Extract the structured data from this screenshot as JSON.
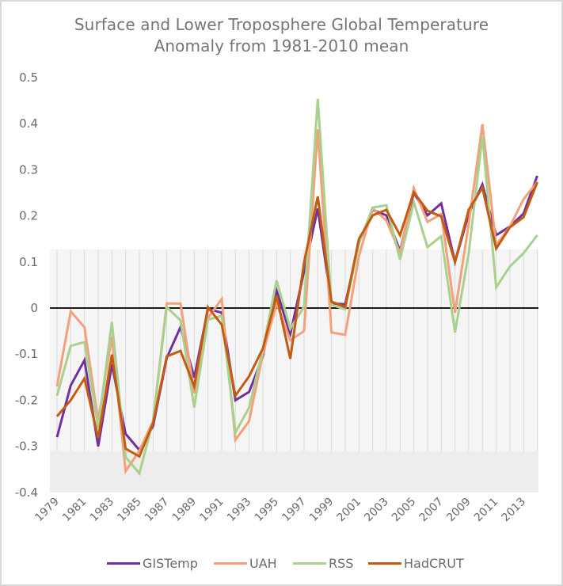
{
  "chart_data": {
    "type": "line",
    "title": "Surface and Lower Troposphere Global Temperature Anomaly from 1981-2010 mean",
    "title_lines": [
      "Surface and Lower Troposphere  Global Temperature",
      "Anomaly from 1981-2010 mean"
    ],
    "xlabel": "",
    "ylabel": "",
    "ylim": [
      -0.4,
      0.5
    ],
    "yticks": [
      0.5,
      0.4,
      0.3,
      0.2,
      0.1,
      0,
      -0.1,
      -0.2,
      -0.3,
      -0.4
    ],
    "ytick_labels": [
      "0.5",
      "0.4",
      "0.3",
      "0.2",
      "0.1",
      "0",
      "-0.1",
      "-0.2",
      "-0.3",
      "-0.4"
    ],
    "x": [
      1979,
      1980,
      1981,
      1982,
      1983,
      1984,
      1985,
      1986,
      1987,
      1988,
      1989,
      1990,
      1991,
      1992,
      1993,
      1994,
      1995,
      1996,
      1997,
      1998,
      1999,
      2000,
      2001,
      2002,
      2003,
      2004,
      2005,
      2006,
      2007,
      2008,
      2009,
      2010,
      2011,
      2012,
      2013,
      2014
    ],
    "xtick_labels": [
      "1979",
      "1981",
      "1983",
      "1985",
      "1987",
      "1989",
      "1991",
      "1993",
      "1995",
      "1997",
      "1999",
      "2001",
      "2003",
      "2005",
      "2007",
      "2009",
      "2011",
      "2013"
    ],
    "grid": "vertical gridlines at each year; zero line emphasized",
    "shaded_bands": [
      {
        "from": -0.311,
        "to": 0.127,
        "shade": "light"
      },
      {
        "from": -0.4,
        "to": -0.311,
        "shade": "darker"
      }
    ],
    "legend_position": "bottom",
    "series": [
      {
        "name": "GISTemp",
        "color": "#7030A0",
        "values": [
          -0.28,
          -0.168,
          -0.113,
          -0.3,
          -0.122,
          -0.273,
          -0.308,
          -0.256,
          -0.108,
          -0.041,
          -0.151,
          -0.002,
          -0.01,
          -0.2,
          -0.182,
          -0.105,
          0.038,
          -0.057,
          0.079,
          0.216,
          0.01,
          0.008,
          0.141,
          0.213,
          0.201,
          0.124,
          0.25,
          0.201,
          0.227,
          0.1,
          0.204,
          0.268,
          0.158,
          0.177,
          0.205,
          0.287
        ]
      },
      {
        "name": "UAH",
        "color": "#F4A07A",
        "values": [
          -0.17,
          -0.007,
          -0.042,
          -0.245,
          -0.062,
          -0.354,
          -0.31,
          -0.245,
          0.01,
          0.01,
          -0.185,
          -0.022,
          0.02,
          -0.286,
          -0.245,
          -0.1,
          0.01,
          -0.07,
          -0.05,
          0.388,
          -0.053,
          -0.058,
          0.113,
          0.216,
          0.19,
          0.12,
          0.26,
          0.187,
          0.204,
          -0.01,
          0.182,
          0.399,
          0.136,
          0.177,
          0.236,
          0.274
        ]
      },
      {
        "name": "RSS",
        "color": "#A9D18E",
        "values": [
          -0.19,
          -0.082,
          -0.074,
          -0.26,
          -0.03,
          -0.323,
          -0.359,
          -0.245,
          0.002,
          -0.027,
          -0.216,
          -0.025,
          -0.017,
          -0.27,
          -0.216,
          -0.09,
          0.06,
          -0.045,
          0.003,
          0.454,
          0.007,
          -0.003,
          0.14,
          0.218,
          0.223,
          0.105,
          0.23,
          0.132,
          0.156,
          -0.053,
          0.119,
          0.373,
          0.045,
          0.09,
          0.119,
          0.158
        ]
      },
      {
        "name": "HadCRUT",
        "color": "#C55A11",
        "values": [
          -0.235,
          -0.2,
          -0.153,
          -0.282,
          -0.101,
          -0.305,
          -0.322,
          -0.25,
          -0.105,
          -0.093,
          -0.17,
          0.002,
          -0.036,
          -0.19,
          -0.148,
          -0.088,
          0.027,
          -0.11,
          0.098,
          0.242,
          0.014,
          0.002,
          0.15,
          0.201,
          0.213,
          0.158,
          0.251,
          0.211,
          0.199,
          0.1,
          0.213,
          0.261,
          0.129,
          0.175,
          0.197,
          0.273
        ]
      }
    ]
  },
  "style_colors": {
    "text": "#757575",
    "gridline": "#d9d9d9",
    "zero_line": "#1a1a1a",
    "band_light": "#f5f5f5",
    "band_dark": "#ededed",
    "frame_border": "#d9d9d9"
  }
}
